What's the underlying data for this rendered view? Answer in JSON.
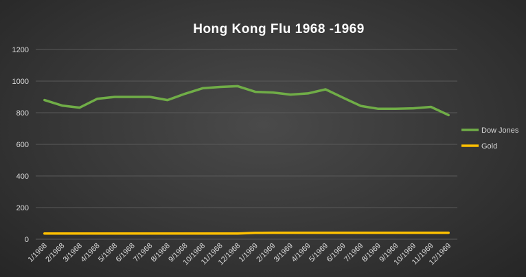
{
  "chart_data": {
    "type": "line",
    "title": "Hong Kong Flu 1968 -1969",
    "categories": [
      "1/1968",
      "2/1968",
      "3/1968",
      "4/1968",
      "5/1968",
      "6/1968",
      "7/1968",
      "8/1968",
      "9/1968",
      "10/1968",
      "11/1968",
      "12/1968",
      "1/1969",
      "2/1969",
      "3/1969",
      "4/1969",
      "5/1969",
      "6/1969",
      "7/1969",
      "8/1969",
      "9/1969",
      "10/1969",
      "11/1969",
      "12/1969"
    ],
    "series": [
      {
        "name": "Dow Jones",
        "color": "#70ad47",
        "values": [
          880,
          845,
          832,
          888,
          900,
          900,
          900,
          880,
          920,
          955,
          963,
          968,
          932,
          928,
          915,
          922,
          948,
          895,
          843,
          825,
          825,
          828,
          837,
          785
        ]
      },
      {
        "name": "Gold",
        "color": "#ffc000",
        "values": [
          36,
          36,
          36,
          36,
          36,
          36,
          36,
          36,
          36,
          36,
          36,
          36,
          40,
          41,
          41,
          41,
          41,
          41,
          41,
          41,
          41,
          41,
          41,
          41
        ]
      }
    ],
    "ylim": [
      0,
      1200
    ],
    "yticks": [
      0,
      200,
      400,
      600,
      800,
      1000,
      1200
    ],
    "grid": true,
    "legend": "right"
  }
}
